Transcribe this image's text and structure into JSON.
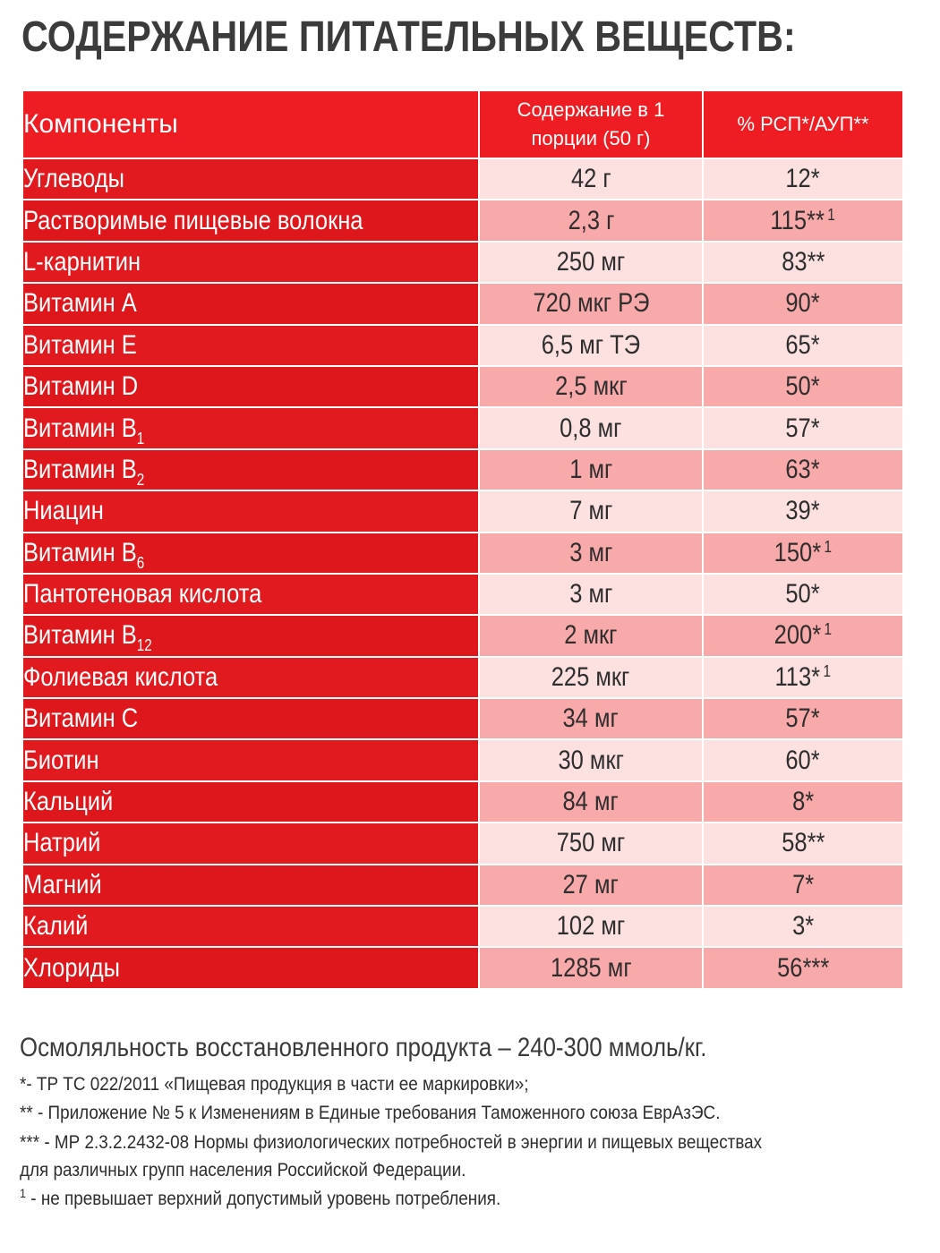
{
  "title": "СОДЕРЖАНИЕ ПИТАТЕЛЬНЫХ ВЕЩЕСТВ:",
  "table": {
    "headers": {
      "name": "Компоненты",
      "amount_line1": "Содержание в 1",
      "amount_line2": "порции (50 г)",
      "pct": "% РСП*/АУП**"
    },
    "rows": [
      {
        "name": "Углеводы",
        "sub": "",
        "amount": "42 г",
        "pct": "12*",
        "note": ""
      },
      {
        "name": "Растворимые пищевые волокна",
        "sub": "",
        "amount": "2,3 г",
        "pct": "115**",
        "note": "1"
      },
      {
        "name": "L-карнитин",
        "sub": "",
        "amount": "250 мг",
        "pct": "83**",
        "note": ""
      },
      {
        "name": "Витамин А",
        "sub": "",
        "amount": "720 мкг РЭ",
        "pct": "90*",
        "note": ""
      },
      {
        "name": "Витамин Е",
        "sub": "",
        "amount": "6,5 мг ТЭ",
        "pct": "65*",
        "note": ""
      },
      {
        "name": "Витамин D",
        "sub": "",
        "amount": "2,5 мкг",
        "pct": "50*",
        "note": ""
      },
      {
        "name": "Витамин В",
        "sub": "1",
        "amount": "0,8 мг",
        "pct": "57*",
        "note": ""
      },
      {
        "name": "Витамин В",
        "sub": "2",
        "amount": "1 мг",
        "pct": "63*",
        "note": ""
      },
      {
        "name": "Ниацин",
        "sub": "",
        "amount": "7 мг",
        "pct": "39*",
        "note": ""
      },
      {
        "name": "Витамин В",
        "sub": "6",
        "amount": "3 мг",
        "pct": "150*",
        "note": "1"
      },
      {
        "name": "Пантотеновая кислота",
        "sub": "",
        "amount": "3 мг",
        "pct": "50*",
        "note": ""
      },
      {
        "name": "Витамин В",
        "sub": "12",
        "amount": "2 мкг",
        "pct": "200*",
        "note": "1"
      },
      {
        "name": "Фолиевая кислота",
        "sub": "",
        "amount": "225 мкг",
        "pct": "113*",
        "note": "1"
      },
      {
        "name": "Витамин С",
        "sub": "",
        "amount": "34 мг",
        "pct": "57*",
        "note": ""
      },
      {
        "name": "Биотин",
        "sub": "",
        "amount": "30 мкг",
        "pct": "60*",
        "note": ""
      },
      {
        "name": "Кальций",
        "sub": "",
        "amount": "84 мг",
        "pct": "8*",
        "note": ""
      },
      {
        "name": "Натрий",
        "sub": "",
        "amount": "750 мг",
        "pct": "58**",
        "note": ""
      },
      {
        "name": "Магний",
        "sub": "",
        "amount": "27 мг",
        "pct": "7*",
        "note": ""
      },
      {
        "name": "Калий",
        "sub": "",
        "amount": "102 мг",
        "pct": "3*",
        "note": ""
      },
      {
        "name": "Хлориды",
        "sub": "",
        "amount": "1285 мг",
        "pct": "56***",
        "note": ""
      }
    ]
  },
  "osmolality": "Осмоляльность восстановленного продукта – 240-300 ммоль/кг.",
  "footnotes": {
    "f1": "*-  ТР ТС 022/2011 «Пищевая продукция в части ее маркировки»;",
    "f2": "** - Приложение № 5 к Изменениям в Единые требования Таможенного союза ЕврАзЭС.",
    "f3_line1": "*** - МР 2.3.2.2432-08  Нормы физиологических потребностей в энергии и пищевых веществах",
    "f3_line2": "для различных групп населения Российской Федерации.",
    "f4_mark": "1",
    "f4_text": " - не превышает верхний допустимый уровень потребления."
  },
  "colors": {
    "header_red": "#ee1d23",
    "name_red": "#e11a20",
    "light_pink": "#fde0e0",
    "dark_pink": "#f8a9aa"
  }
}
